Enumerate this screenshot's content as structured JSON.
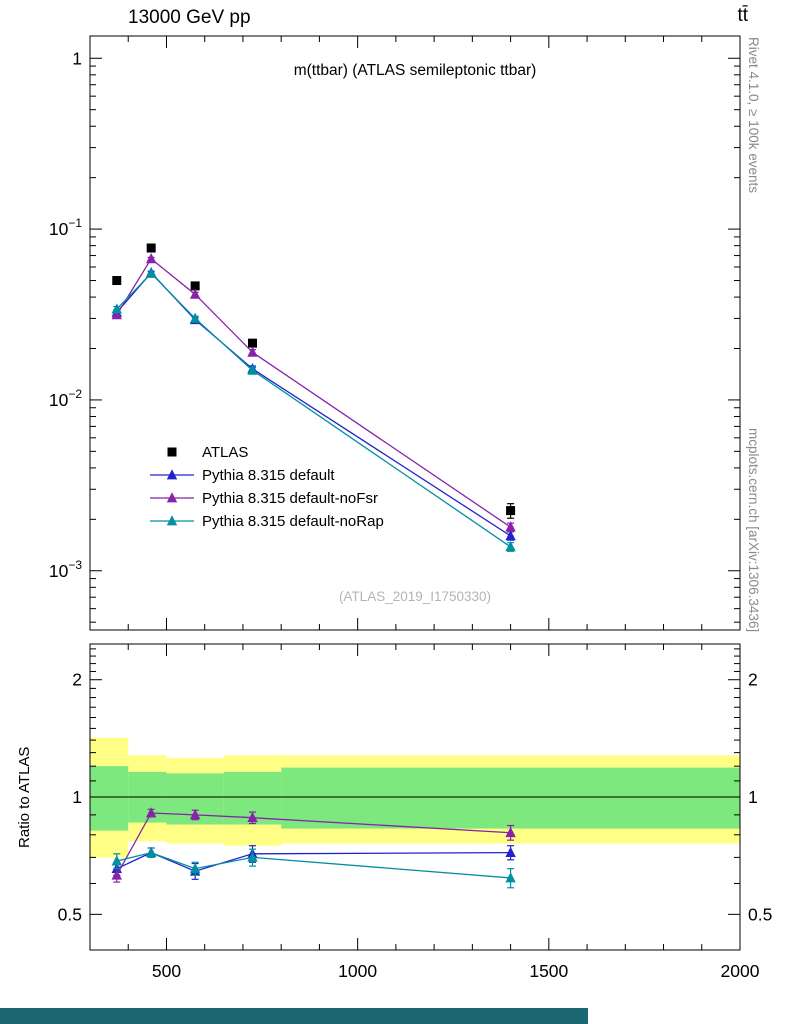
{
  "header": {
    "left": "13000 GeV pp",
    "right": "tt̄"
  },
  "side_labels": {
    "rivet": "Rivet 4.1.0, ≥ 100k events",
    "mcplots": "mcplots.cern.ch [arXiv:1306.3436]"
  },
  "footer": {
    "color": "#1a6671"
  },
  "chart_data": {
    "type": "line",
    "title": "m(ttbar) (ATLAS semileptonic ttbar)",
    "watermark": "(ATLAS_2019_I1750330)",
    "x": [
      370,
      460,
      575,
      725,
      1400
    ],
    "xlim": [
      300,
      2000
    ],
    "xticks": [
      500,
      1000,
      1500,
      2000
    ],
    "x_minor_step": 100,
    "main_panel": {
      "ylog": true,
      "ylim": [
        0.00045,
        1.35
      ],
      "yticks": [
        {
          "v": 1,
          "label": "1"
        },
        {
          "v": 0.1,
          "base": "10",
          "exp": "−1"
        },
        {
          "v": 0.01,
          "base": "10",
          "exp": "−2"
        },
        {
          "v": 0.001,
          "base": "10",
          "exp": "−3"
        }
      ],
      "series": [
        {
          "name": "ATLAS",
          "color": "#000000",
          "marker": "square",
          "line": false,
          "values": [
            0.05,
            0.0775,
            0.0465,
            0.0215,
            0.00225
          ],
          "errs": [
            0.002,
            0.002,
            0.0015,
            0.001,
            0.00022
          ]
        },
        {
          "name": "Pythia 8.315 default",
          "color": "#2222cc",
          "marker": "triangle",
          "line": true,
          "values": [
            0.0325,
            0.0555,
            0.0295,
            0.0152,
            0.0016
          ],
          "errs": [
            0.0012,
            0.0012,
            0.0009,
            0.0006,
            9e-05
          ]
        },
        {
          "name": "Pythia 8.315 default-noFsr",
          "color": "#8822aa",
          "marker": "triangle",
          "line": true,
          "values": [
            0.0315,
            0.067,
            0.0415,
            0.019,
            0.0018
          ],
          "errs": [
            0.0012,
            0.0013,
            0.0011,
            0.0007,
            0.0001
          ]
        },
        {
          "name": "Pythia 8.315 default-noRap",
          "color": "#0090a0",
          "marker": "triangle",
          "line": true,
          "values": [
            0.034,
            0.055,
            0.03,
            0.0149,
            0.00138
          ],
          "errs": [
            0.0012,
            0.0012,
            0.0009,
            0.0006,
            8e-05
          ]
        }
      ]
    },
    "ratio_panel": {
      "ylabel": "Ratio to ATLAS",
      "ylog": true,
      "ylim": [
        0.405,
        2.47
      ],
      "yticks": [
        {
          "v": 0.5,
          "label": "0.5"
        },
        {
          "v": 1,
          "label": "1"
        },
        {
          "v": 2,
          "label": "2"
        }
      ],
      "reference_line": 1,
      "bands": {
        "bins": [
          [
            300,
            400
          ],
          [
            400,
            500
          ],
          [
            500,
            650
          ],
          [
            650,
            800
          ],
          [
            800,
            2000
          ]
        ],
        "yellow": {
          "color": "#ffff85",
          "ranges": [
            [
              0.7,
              1.42
            ],
            [
              0.77,
              1.28
            ],
            [
              0.76,
              1.26
            ],
            [
              0.75,
              1.28
            ],
            [
              0.76,
              1.28
            ]
          ]
        },
        "green": {
          "color": "#7de87d",
          "ranges": [
            [
              0.82,
              1.2
            ],
            [
              0.86,
              1.16
            ],
            [
              0.85,
              1.15
            ],
            [
              0.85,
              1.16
            ],
            [
              0.83,
              1.19
            ]
          ]
        }
      },
      "series": [
        {
          "name": "Pythia 8.315 default",
          "color": "#2222cc",
          "marker": "triangle",
          "values": [
            0.655,
            0.72,
            0.645,
            0.715,
            0.72
          ],
          "errs": [
            0.025,
            0.02,
            0.03,
            0.035,
            0.03
          ]
        },
        {
          "name": "Pythia 8.315 default-noFsr",
          "color": "#8822aa",
          "marker": "triangle",
          "values": [
            0.63,
            0.91,
            0.9,
            0.885,
            0.81
          ],
          "errs": [
            0.025,
            0.02,
            0.025,
            0.03,
            0.035
          ]
        },
        {
          "name": "Pythia 8.315 default-noRap",
          "color": "#0090a0",
          "marker": "triangle",
          "values": [
            0.685,
            0.72,
            0.655,
            0.7,
            0.62
          ],
          "errs": [
            0.03,
            0.02,
            0.025,
            0.035,
            0.035
          ]
        }
      ]
    }
  }
}
